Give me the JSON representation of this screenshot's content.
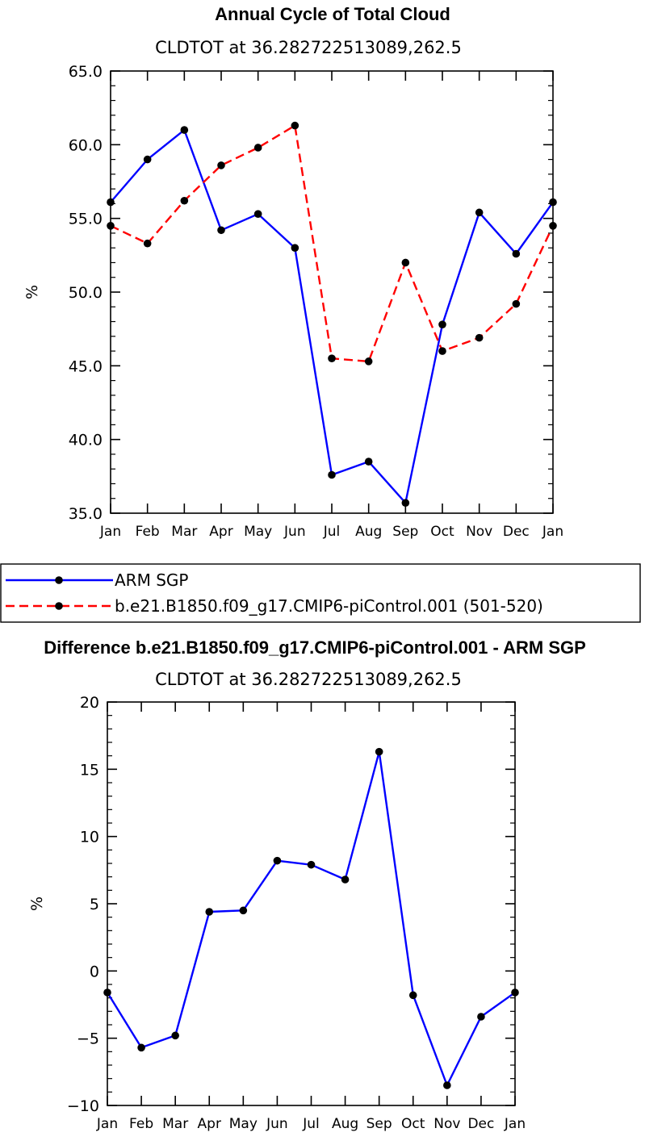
{
  "chart_data": [
    {
      "type": "line",
      "title": "Annual Cycle of Total Cloud",
      "subtitle": "CLDTOT at 36.282722513089,262.5",
      "xlabel": "",
      "ylabel": "%",
      "categories": [
        "Jan",
        "Feb",
        "Mar",
        "Apr",
        "May",
        "Jun",
        "Jul",
        "Aug",
        "Sep",
        "Oct",
        "Nov",
        "Dec",
        "Jan"
      ],
      "ylim": [
        35.0,
        65.0
      ],
      "yticks": [
        "35.0",
        "40.0",
        "45.0",
        "50.0",
        "55.0",
        "60.0",
        "65.0"
      ],
      "legend_position": "bottom",
      "series": [
        {
          "name": "ARM SGP",
          "color": "#0000ff",
          "style": "solid",
          "values": [
            56.1,
            59.0,
            61.0,
            54.2,
            55.3,
            53.0,
            37.6,
            38.5,
            35.7,
            47.8,
            55.4,
            52.6,
            56.1
          ]
        },
        {
          "name": "b.e21.B1850.f09_g17.CMIP6-piControl.001 (501-520)",
          "color": "#ff0000",
          "style": "dashed",
          "values": [
            54.5,
            53.3,
            56.2,
            58.6,
            59.8,
            61.3,
            45.5,
            45.3,
            52.0,
            46.0,
            46.9,
            49.2,
            54.5
          ]
        }
      ]
    },
    {
      "type": "line",
      "title": "Difference b.e21.B1850.f09_g17.CMIP6-piControl.001 - ARM SGP",
      "subtitle": "CLDTOT at 36.282722513089,262.5",
      "xlabel": "",
      "ylabel": "%",
      "categories": [
        "Jan",
        "Feb",
        "Mar",
        "Apr",
        "May",
        "Jun",
        "Jul",
        "Aug",
        "Sep",
        "Oct",
        "Nov",
        "Dec",
        "Jan"
      ],
      "ylim": [
        -10,
        20
      ],
      "yticks": [
        "−10",
        "−5",
        "0",
        "5",
        "10",
        "15",
        "20"
      ],
      "series": [
        {
          "color": "#0000ff",
          "style": "solid",
          "values": [
            -1.6,
            -5.7,
            -4.8,
            4.4,
            4.5,
            8.2,
            7.9,
            6.8,
            16.3,
            -1.8,
            -8.5,
            -3.4,
            -1.6
          ]
        }
      ]
    }
  ]
}
